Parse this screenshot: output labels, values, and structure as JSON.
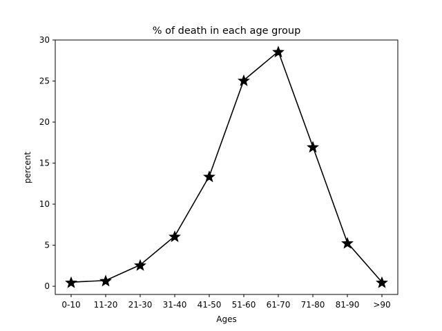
{
  "chart_data": {
    "type": "line",
    "title": "% of death in each age group",
    "xlabel": "Ages",
    "ylabel": "percent",
    "categories": [
      "0-10",
      "11-20",
      "21-30",
      "31-40",
      "41-50",
      "51-60",
      "61-70",
      "71-80",
      "81-90",
      ">90"
    ],
    "series": [
      {
        "values": [
          0.5,
          0.7,
          2.6,
          6.1,
          13.4,
          25.1,
          28.6,
          17.0,
          5.3,
          0.5
        ],
        "color": "#000000",
        "marker": "star"
      }
    ],
    "ylim": [
      -1,
      30
    ],
    "yticks": [
      0,
      5,
      10,
      15,
      20,
      25,
      30
    ],
    "grid": false
  }
}
